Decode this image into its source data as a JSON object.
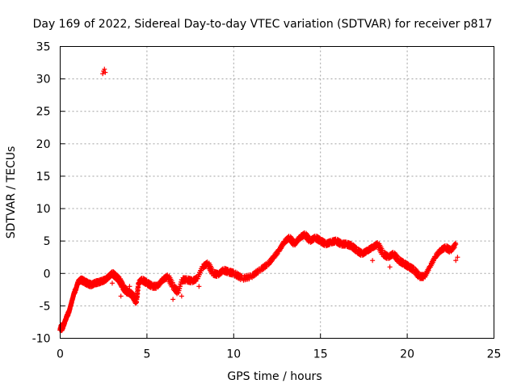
{
  "chart_data": {
    "type": "scatter",
    "title": "Day 169 of 2022, Sidereal Day-to-day VTEC variation (SDTVAR) for receiver p817",
    "xlabel": "GPS time / hours",
    "ylabel": "SDTVAR / TECUs",
    "xlim": [
      0,
      25
    ],
    "ylim": [
      -10,
      35
    ],
    "xticks": [
      0,
      5,
      10,
      15,
      20,
      25
    ],
    "yticks": [
      -10,
      -5,
      0,
      5,
      10,
      15,
      20,
      25,
      30,
      35
    ],
    "grid": true,
    "marker": "+",
    "color": "#ff0000",
    "series": [
      {
        "name": "SDTVAR",
        "x": [
          0.0,
          0.05,
          0.1,
          0.2,
          0.3,
          0.4,
          0.5,
          0.6,
          0.7,
          0.8,
          0.9,
          1.0,
          1.1,
          1.2,
          1.4,
          1.6,
          1.8,
          2.0,
          2.2,
          2.4,
          2.6,
          2.8,
          3.0,
          3.2,
          3.4,
          3.6,
          3.8,
          4.0,
          4.2,
          4.4,
          4.5,
          4.7,
          5.0,
          5.3,
          5.6,
          5.9,
          6.2,
          6.5,
          6.8,
          7.0,
          7.3,
          7.6,
          7.9,
          8.2,
          8.5,
          8.8,
          9.1,
          9.4,
          9.7,
          10.0,
          10.5,
          11.0,
          11.5,
          12.0,
          12.3,
          12.6,
          12.9,
          13.2,
          13.5,
          13.8,
          14.1,
          14.4,
          14.7,
          15.0,
          15.3,
          15.6,
          15.9,
          16.2,
          16.5,
          16.8,
          17.1,
          17.4,
          17.7,
          18.0,
          18.3,
          18.6,
          18.9,
          19.2,
          19.5,
          19.8,
          20.1,
          20.4,
          20.7,
          21.0,
          21.3,
          21.6,
          21.9,
          22.2,
          22.5,
          22.8
        ],
        "y": [
          -8.5,
          -8.2,
          -8.6,
          -8.0,
          -7.2,
          -6.5,
          -6.0,
          -5.0,
          -4.0,
          -3.0,
          -2.5,
          -1.5,
          -1.2,
          -1.0,
          -1.3,
          -1.6,
          -1.8,
          -1.5,
          -1.4,
          -1.2,
          -1.0,
          -0.5,
          0.0,
          -0.5,
          -1.0,
          -2.0,
          -2.8,
          -3.0,
          -3.5,
          -4.5,
          -1.5,
          -1.0,
          -1.5,
          -2.0,
          -2.0,
          -1.0,
          -0.5,
          -2.0,
          -3.0,
          -1.0,
          -1.0,
          -1.2,
          -0.8,
          1.0,
          1.5,
          0.0,
          -0.2,
          0.5,
          0.2,
          0.0,
          -0.8,
          -0.5,
          0.5,
          1.5,
          2.5,
          3.5,
          4.8,
          5.5,
          4.5,
          5.5,
          6.0,
          5.0,
          5.5,
          5.0,
          4.5,
          4.8,
          5.0,
          4.5,
          4.5,
          4.2,
          3.5,
          3.0,
          3.5,
          4.0,
          4.5,
          3.0,
          2.5,
          3.0,
          2.0,
          1.5,
          1.0,
          0.5,
          -0.5,
          -0.5,
          1.0,
          2.5,
          3.5,
          4.0,
          3.5,
          4.5
        ],
        "extra_points": [
          {
            "x": 2.45,
            "y": 30.8
          },
          {
            "x": 2.5,
            "y": 31.2
          },
          {
            "x": 2.55,
            "y": 31.5
          },
          {
            "x": 2.6,
            "y": 31.0
          },
          {
            "x": 22.8,
            "y": 2.0
          },
          {
            "x": 22.9,
            "y": 2.5
          },
          {
            "x": 3.0,
            "y": -1.5
          },
          {
            "x": 3.5,
            "y": -3.5
          },
          {
            "x": 4.0,
            "y": -2.0
          },
          {
            "x": 6.5,
            "y": -4.0
          },
          {
            "x": 7.0,
            "y": -3.5
          },
          {
            "x": 8.0,
            "y": -2.0
          },
          {
            "x": 18.0,
            "y": 2.0
          },
          {
            "x": 19.0,
            "y": 1.0
          }
        ]
      }
    ]
  }
}
